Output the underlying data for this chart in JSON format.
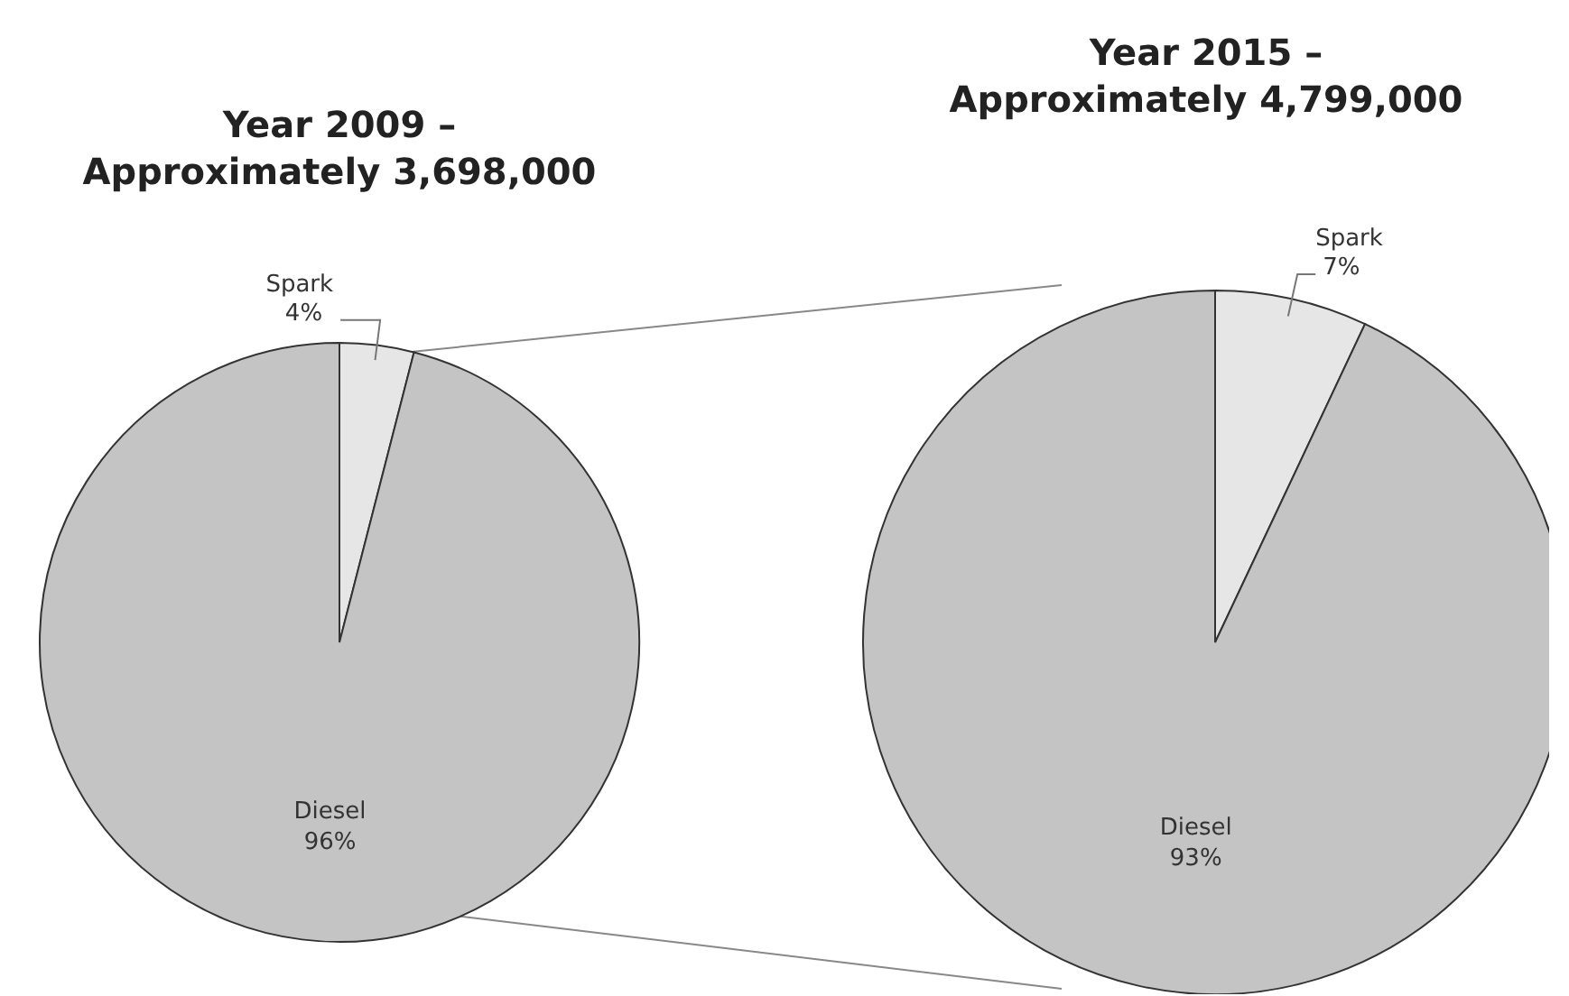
{
  "chart_data": [
    {
      "type": "pie",
      "title": "Year 2009 –\nApproximately 3,698,000",
      "categories": [
        "Spark",
        "Diesel"
      ],
      "values": [
        4,
        96
      ],
      "value_labels": [
        "4%",
        "96%"
      ],
      "colors": [
        "#e6e6e6",
        "#c4c4c4"
      ]
    },
    {
      "type": "pie",
      "title": "Year 2015 –\nApproximately 4,799,000",
      "categories": [
        "Spark",
        "Diesel"
      ],
      "values": [
        7,
        93
      ],
      "value_labels": [
        "7%",
        "93%"
      ],
      "colors": [
        "#e6e6e6",
        "#c4c4c4"
      ]
    }
  ]
}
